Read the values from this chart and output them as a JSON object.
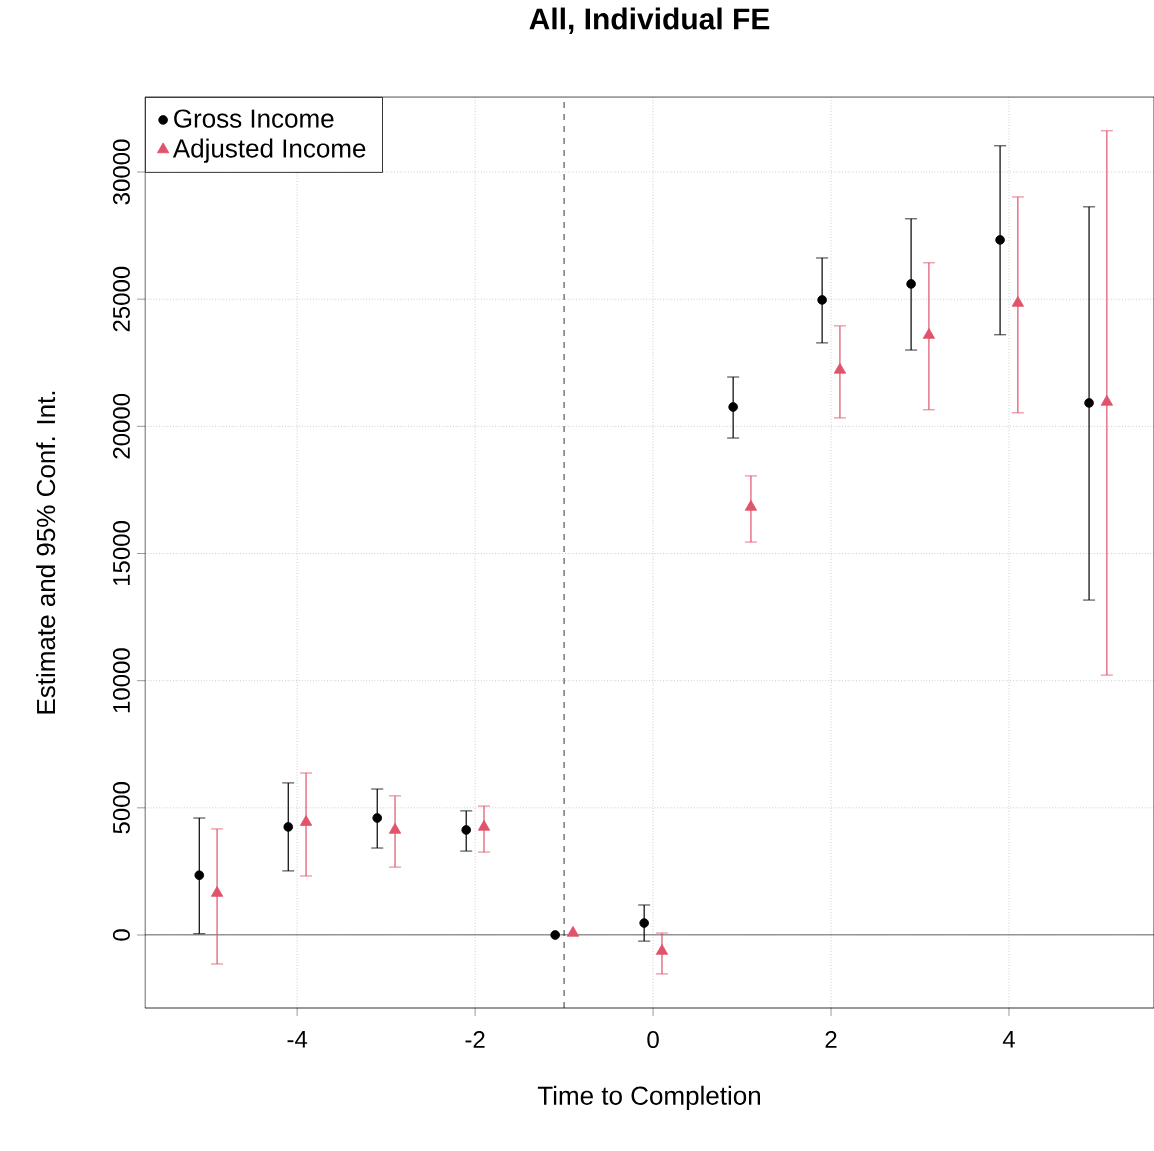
{
  "chart_data": {
    "type": "scatter",
    "title": "All, Individual FE",
    "xlabel": "Time to Completion",
    "ylabel": "Estimate and 95% Conf. Int.",
    "series": [
      {
        "name": "Gross Income",
        "color": "#000000",
        "marker": "circle",
        "x": [
          -5.1,
          -4.1,
          -3.1,
          -2.1,
          -1.1,
          -0.1,
          0.9,
          1.9,
          2.9,
          3.9,
          4.9
        ],
        "values": [
          2350,
          4250,
          4600,
          4130,
          0,
          470,
          20760,
          24970,
          25600,
          27330,
          20920
        ],
        "errors": [
          [
            50,
            4600
          ],
          [
            2520,
            5980
          ],
          [
            3420,
            5740
          ],
          [
            3300,
            4880
          ],
          null,
          [
            -240,
            1180
          ],
          [
            19540,
            21940
          ],
          [
            23280,
            26620
          ],
          [
            23000,
            28160
          ],
          [
            23600,
            31030
          ],
          [
            13170,
            28630
          ]
        ]
      },
      {
        "name": "Adjusted Income",
        "color": "#df536b",
        "marker": "triangle",
        "x": [
          -4.9,
          -3.9,
          -2.9,
          -1.9,
          -0.9,
          0.1,
          1.1,
          2.1,
          3.1,
          4.1,
          5.1
        ],
        "values": [
          1650,
          4440,
          4130,
          4250,
          80,
          -630,
          16830,
          22220,
          23590,
          24850,
          20960
        ],
        "errors": [
          [
            -1140,
            4170
          ],
          [
            2320,
            6370
          ],
          [
            2670,
            5470
          ],
          [
            3260,
            5070
          ],
          null,
          [
            -1530,
            80
          ],
          [
            15450,
            18050
          ],
          [
            20330,
            23950
          ],
          [
            20650,
            26430
          ],
          [
            20530,
            29020
          ],
          [
            10220,
            31620
          ]
        ]
      }
    ],
    "xlim": [
      -5.71,
      5.63
    ],
    "ylim": [
      -2870,
      32950
    ],
    "xticks": [
      -4,
      -2,
      0,
      2,
      4
    ],
    "yticks": [
      0,
      5000,
      10000,
      15000,
      20000,
      25000,
      30000
    ],
    "ref_lines": [
      {
        "axis": "x",
        "value": -1,
        "line_style": "dashed",
        "color": "#000000"
      },
      {
        "axis": "y",
        "value": 0,
        "line_style": "solid",
        "color": "#000000"
      }
    ],
    "grid": true,
    "legend": "top left"
  }
}
